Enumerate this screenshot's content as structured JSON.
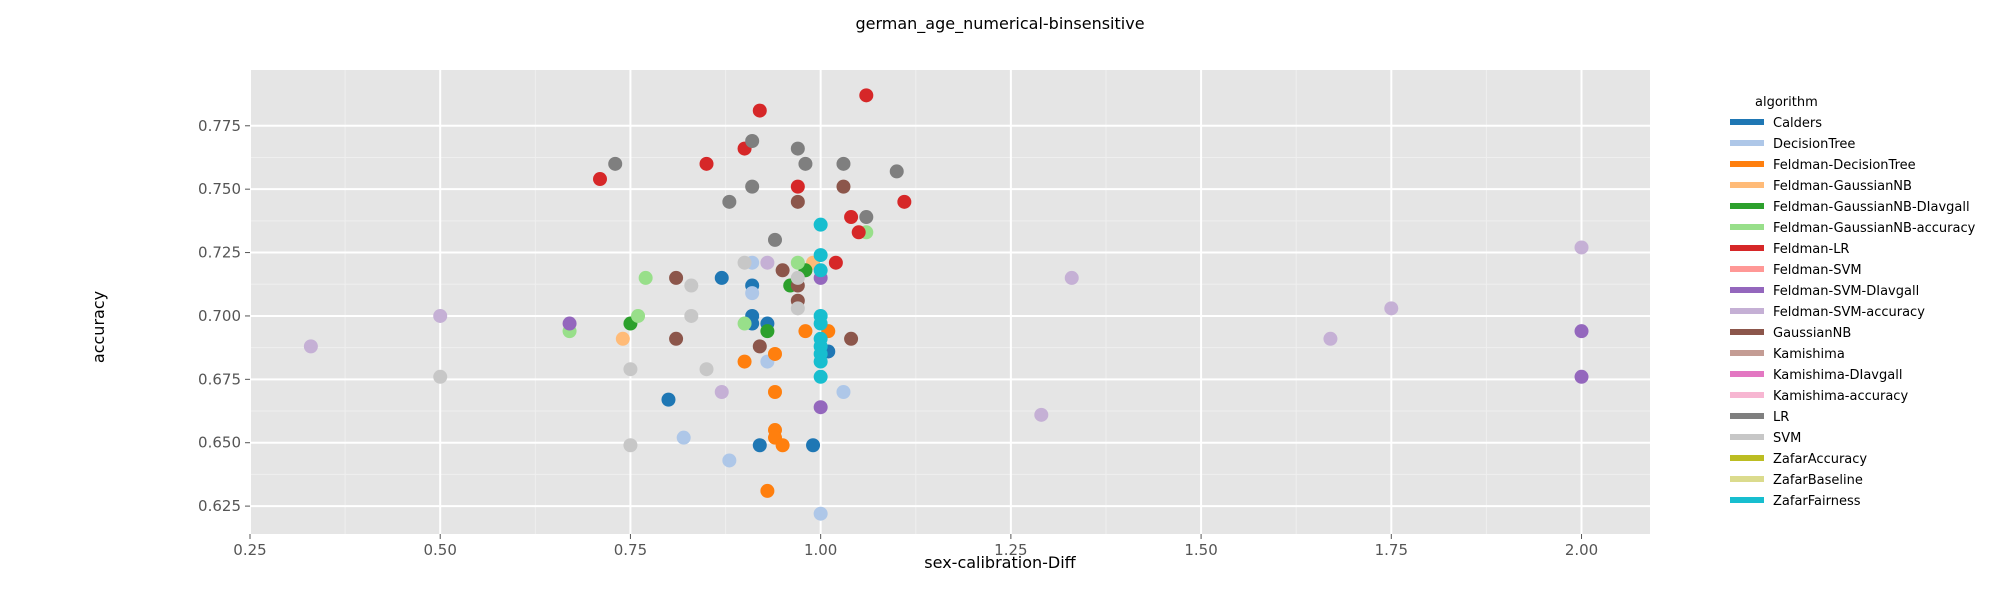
{
  "chart_data": {
    "type": "scatter",
    "title": "german_age_numerical-binsensitive",
    "xlabel": "sex-calibration-Diff",
    "ylabel": "accuracy",
    "xlim": [
      0.25,
      2.09
    ],
    "ylim": [
      0.614,
      0.797
    ],
    "x_ticks": [
      "0.25",
      "0.50",
      "0.75",
      "1.00",
      "1.25",
      "1.50",
      "1.75",
      "2.00"
    ],
    "y_ticks": [
      "0.625",
      "0.650",
      "0.675",
      "0.700",
      "0.725",
      "0.750",
      "0.775"
    ],
    "grid": true,
    "background": "#e5e5e5",
    "legend_title": "algorithm",
    "legend_position": "right",
    "series": [
      {
        "name": "Calders",
        "color": "#1f77b4",
        "points": [
          [
            0.87,
            0.715
          ],
          [
            0.91,
            0.712
          ],
          [
            0.91,
            0.7
          ],
          [
            0.93,
            0.697
          ],
          [
            0.8,
            0.667
          ],
          [
            0.92,
            0.649
          ],
          [
            0.99,
            0.649
          ],
          [
            0.91,
            0.697
          ],
          [
            1.01,
            0.686
          ]
        ]
      },
      {
        "name": "DecisionTree",
        "color": "#aec7e8",
        "points": [
          [
            0.91,
            0.709
          ],
          [
            0.93,
            0.682
          ],
          [
            0.82,
            0.652
          ],
          [
            0.88,
            0.643
          ],
          [
            1.03,
            0.67
          ],
          [
            1.0,
            0.622
          ],
          [
            0.91,
            0.721
          ]
        ]
      },
      {
        "name": "Feldman-DecisionTree",
        "color": "#ff7f0e",
        "points": [
          [
            0.94,
            0.685
          ],
          [
            0.9,
            0.682
          ],
          [
            0.94,
            0.67
          ],
          [
            0.94,
            0.655
          ],
          [
            0.94,
            0.652
          ],
          [
            0.95,
            0.649
          ],
          [
            0.93,
            0.631
          ],
          [
            0.98,
            0.694
          ],
          [
            1.01,
            0.694
          ]
        ]
      },
      {
        "name": "Feldman-GaussianNB",
        "color": "#ffbb78",
        "points": [
          [
            0.74,
            0.691
          ],
          [
            0.99,
            0.721
          ]
        ]
      },
      {
        "name": "Feldman-GaussianNB-DIavgall",
        "color": "#2ca02c",
        "points": [
          [
            0.75,
            0.697
          ],
          [
            0.93,
            0.694
          ],
          [
            0.98,
            0.718
          ],
          [
            0.96,
            0.712
          ]
        ]
      },
      {
        "name": "Feldman-GaussianNB-accuracy",
        "color": "#98df8a",
        "points": [
          [
            0.77,
            0.715
          ],
          [
            0.67,
            0.694
          ],
          [
            0.76,
            0.7
          ],
          [
            0.97,
            0.721
          ],
          [
            0.9,
            0.697
          ],
          [
            1.06,
            0.733
          ]
        ]
      },
      {
        "name": "Feldman-LR",
        "color": "#d62728",
        "points": [
          [
            0.71,
            0.754
          ],
          [
            0.85,
            0.76
          ],
          [
            0.9,
            0.766
          ],
          [
            0.92,
            0.781
          ],
          [
            0.97,
            0.751
          ],
          [
            1.04,
            0.739
          ],
          [
            1.05,
            0.733
          ],
          [
            1.06,
            0.787
          ],
          [
            1.11,
            0.745
          ],
          [
            1.02,
            0.721
          ]
        ]
      },
      {
        "name": "Feldman-SVM",
        "color": "#ff9896",
        "points": []
      },
      {
        "name": "Feldman-SVM-DIavgall",
        "color": "#9467bd",
        "points": [
          [
            0.67,
            0.697
          ],
          [
            1.0,
            0.715
          ],
          [
            1.0,
            0.664
          ],
          [
            2.0,
            0.694
          ],
          [
            2.0,
            0.676
          ]
        ]
      },
      {
        "name": "Feldman-SVM-accuracy",
        "color": "#c5b0d5",
        "points": [
          [
            0.33,
            0.688
          ],
          [
            0.5,
            0.7
          ],
          [
            0.87,
            0.67
          ],
          [
            0.93,
            0.721
          ],
          [
            1.29,
            0.661
          ],
          [
            1.33,
            0.715
          ],
          [
            1.67,
            0.691
          ],
          [
            1.75,
            0.703
          ],
          [
            2.0,
            0.727
          ]
        ]
      },
      {
        "name": "GaussianNB",
        "color": "#8c564b",
        "points": [
          [
            0.81,
            0.715
          ],
          [
            0.81,
            0.691
          ],
          [
            0.92,
            0.688
          ],
          [
            0.95,
            0.718
          ],
          [
            0.97,
            0.712
          ],
          [
            0.97,
            0.706
          ],
          [
            0.97,
            0.745
          ],
          [
            1.03,
            0.751
          ],
          [
            1.04,
            0.691
          ]
        ]
      },
      {
        "name": "Kamishima",
        "color": "#c49c94",
        "points": []
      },
      {
        "name": "Kamishima-DIavgall",
        "color": "#e377c2",
        "points": []
      },
      {
        "name": "Kamishima-accuracy",
        "color": "#f7b6d2",
        "points": []
      },
      {
        "name": "LR",
        "color": "#7f7f7f",
        "points": [
          [
            0.73,
            0.76
          ],
          [
            0.88,
            0.745
          ],
          [
            0.91,
            0.751
          ],
          [
            0.91,
            0.769
          ],
          [
            0.94,
            0.73
          ],
          [
            0.97,
            0.766
          ],
          [
            0.98,
            0.76
          ],
          [
            1.03,
            0.76
          ],
          [
            1.06,
            0.739
          ],
          [
            1.1,
            0.757
          ]
        ]
      },
      {
        "name": "SVM",
        "color": "#c7c7c7",
        "points": [
          [
            0.5,
            0.676
          ],
          [
            0.75,
            0.649
          ],
          [
            0.75,
            0.679
          ],
          [
            0.83,
            0.712
          ],
          [
            0.83,
            0.7
          ],
          [
            0.85,
            0.679
          ],
          [
            0.9,
            0.721
          ],
          [
            0.97,
            0.715
          ],
          [
            0.97,
            0.703
          ]
        ]
      },
      {
        "name": "ZafarAccuracy",
        "color": "#bcbd22",
        "points": []
      },
      {
        "name": "ZafarBaseline",
        "color": "#dbdb8d",
        "points": []
      },
      {
        "name": "ZafarFairness",
        "color": "#17becf",
        "points": [
          [
            1.0,
            0.736
          ],
          [
            1.0,
            0.724
          ],
          [
            1.0,
            0.718
          ],
          [
            1.0,
            0.7
          ],
          [
            1.0,
            0.697
          ],
          [
            1.0,
            0.691
          ],
          [
            1.0,
            0.688
          ],
          [
            1.0,
            0.685
          ],
          [
            1.0,
            0.682
          ],
          [
            1.0,
            0.676
          ]
        ]
      }
    ]
  }
}
